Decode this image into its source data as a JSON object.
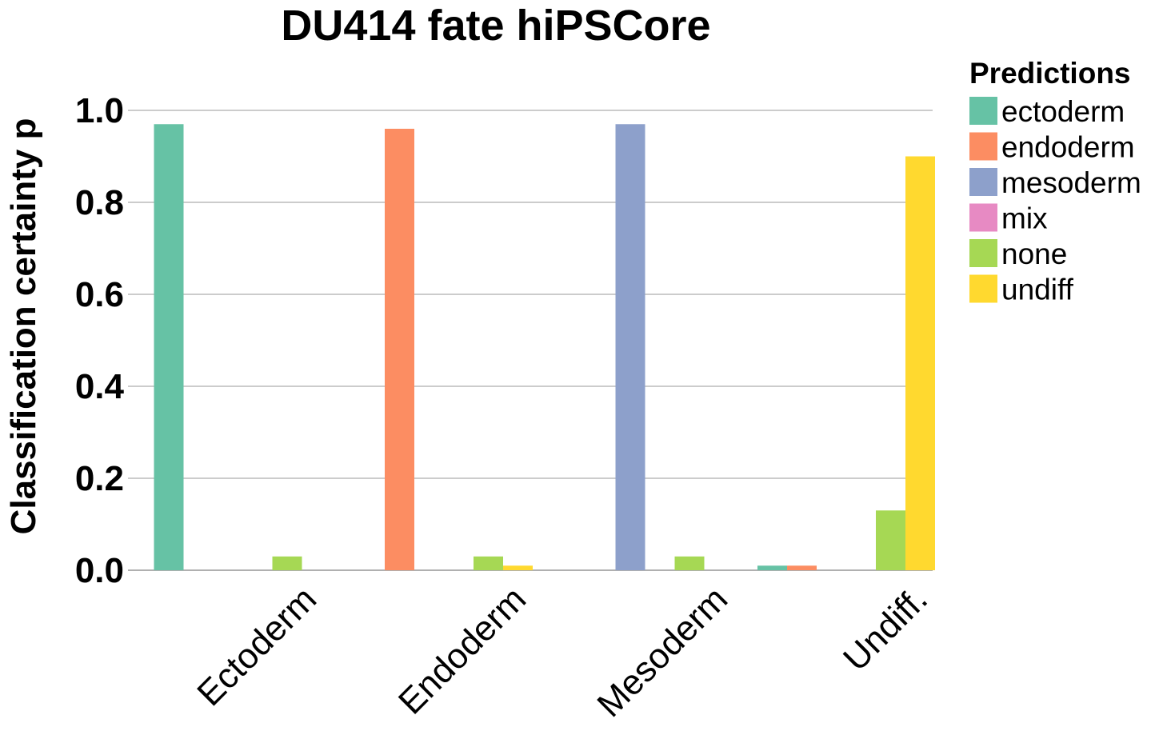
{
  "chart_data": {
    "type": "bar",
    "title": "DU414 fate hiPSCore",
    "ylabel": "Classification certainty p",
    "xlabel": "",
    "ylim": [
      0,
      1.0
    ],
    "yticks": [
      "0.0",
      "0.2",
      "0.4",
      "0.6",
      "0.8",
      "1.0"
    ],
    "grid": true,
    "legend_placement": "right",
    "legend_title": "Predictions",
    "categories": [
      "Ectoderm",
      "Endoderm",
      "Mesoderm",
      "Undiff."
    ],
    "series": [
      {
        "name": "ectoderm",
        "color": "#66c2a5",
        "values": [
          0.97,
          0.0,
          0.0,
          0.01
        ]
      },
      {
        "name": "endoderm",
        "color": "#fc8d62",
        "values": [
          0.0,
          0.96,
          0.0,
          0.01
        ]
      },
      {
        "name": "mesoderm",
        "color": "#8da0cb",
        "values": [
          0.0,
          0.0,
          0.97,
          0.0
        ]
      },
      {
        "name": "mix",
        "color": "#e78ac3",
        "values": [
          0.0,
          0.0,
          0.0,
          0.0
        ]
      },
      {
        "name": "none",
        "color": "#a6d854",
        "values": [
          0.03,
          0.03,
          0.03,
          0.13
        ]
      },
      {
        "name": "undiff",
        "color": "#ffd92f",
        "values": [
          0.0,
          0.01,
          0.0,
          0.9
        ]
      }
    ]
  }
}
